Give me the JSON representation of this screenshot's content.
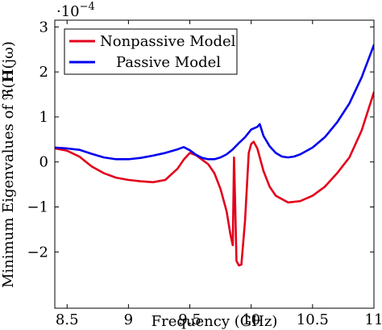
{
  "chart_data": {
    "type": "line",
    "xlabel": "Frequency (GHz)",
    "ylabel": "Minimum Eigenvalues of ℜ(H(jω))",
    "ylabel_parts": {
      "prefix": "Minimum Eigenvalues of ℜ(",
      "bold": "H",
      "suffix": "(jω)"
    },
    "y_multiplier_base": "·10",
    "y_multiplier_exp": "−4",
    "xlim": [
      8.4,
      11
    ],
    "ylim": [
      -3.25,
      3.15
    ],
    "x_ticks": [
      8.5,
      9,
      9.5,
      10,
      10.5,
      11
    ],
    "x_tick_labels": [
      "8.5",
      "9",
      "9.5",
      "10",
      "10.5",
      "11"
    ],
    "y_ticks": [
      -2,
      -1,
      0,
      1,
      2,
      3
    ],
    "y_tick_labels": [
      "−2",
      "−1",
      "0",
      "1",
      "2",
      "3"
    ],
    "legend_position": "top-left",
    "series": [
      {
        "name": "Nonpassive Model",
        "color": "#e3001b",
        "x": [
          8.4,
          8.5,
          8.6,
          8.7,
          8.8,
          8.9,
          9.0,
          9.1,
          9.2,
          9.3,
          9.4,
          9.45,
          9.5,
          9.55,
          9.6,
          9.65,
          9.7,
          9.75,
          9.8,
          9.83,
          9.85,
          9.86,
          9.87,
          9.88,
          9.9,
          9.92,
          9.95,
          9.97,
          9.98,
          10.0,
          10.02,
          10.05,
          10.1,
          10.15,
          10.2,
          10.3,
          10.4,
          10.5,
          10.6,
          10.7,
          10.8,
          10.9,
          11.0
        ],
        "y": [
          0.3,
          0.25,
          0.12,
          -0.1,
          -0.25,
          -0.35,
          -0.4,
          -0.43,
          -0.45,
          -0.4,
          -0.15,
          0.05,
          0.2,
          0.15,
          0.05,
          -0.05,
          -0.25,
          -0.6,
          -1.1,
          -1.6,
          -1.85,
          0.1,
          -1.0,
          -2.2,
          -2.3,
          -2.28,
          -1.3,
          -0.3,
          0.2,
          0.4,
          0.45,
          0.3,
          -0.2,
          -0.55,
          -0.75,
          -0.9,
          -0.87,
          -0.75,
          -0.55,
          -0.25,
          0.1,
          0.7,
          1.55
        ]
      },
      {
        "name": "Passive Model",
        "color": "#0000ee",
        "x": [
          8.4,
          8.5,
          8.6,
          8.7,
          8.8,
          8.9,
          9.0,
          9.1,
          9.2,
          9.3,
          9.4,
          9.45,
          9.5,
          9.55,
          9.6,
          9.65,
          9.7,
          9.75,
          9.8,
          9.85,
          9.9,
          9.95,
          10.0,
          10.05,
          10.07,
          10.1,
          10.15,
          10.2,
          10.25,
          10.3,
          10.35,
          10.4,
          10.5,
          10.6,
          10.7,
          10.8,
          10.9,
          11.0
        ],
        "y": [
          0.32,
          0.3,
          0.27,
          0.18,
          0.1,
          0.06,
          0.06,
          0.09,
          0.14,
          0.2,
          0.28,
          0.33,
          0.26,
          0.16,
          0.09,
          0.06,
          0.06,
          0.1,
          0.17,
          0.28,
          0.42,
          0.55,
          0.72,
          0.78,
          0.84,
          0.58,
          0.35,
          0.2,
          0.12,
          0.1,
          0.12,
          0.17,
          0.32,
          0.55,
          0.88,
          1.3,
          1.88,
          2.6
        ]
      }
    ]
  }
}
